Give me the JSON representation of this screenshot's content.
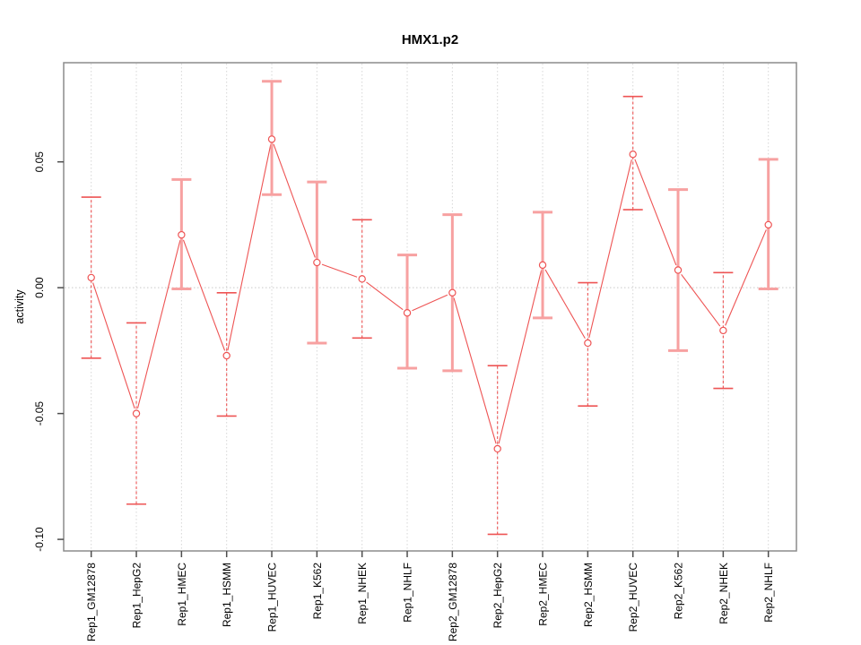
{
  "window": {
    "background": "#ffffff"
  },
  "chart_data": {
    "type": "line",
    "title": "HMX1.p2",
    "xlabel": "",
    "ylabel": "activity",
    "legend": "none",
    "grid": {
      "vertical_dotted_per_category": true,
      "horizontal_dotted_at_zero": true
    },
    "ylim": [
      -0.1046,
      0.0894
    ],
    "yticks": {
      "values": [
        0.05,
        0.0,
        -0.05,
        -0.1
      ],
      "labels": [
        "0.05",
        "0.00",
        "-0.05",
        "-0.10"
      ]
    },
    "categories": [
      "Rep1_GM12878",
      "Rep1_HepG2",
      "Rep1_HMEC",
      "Rep1_HSMM",
      "Rep1_HUVEC",
      "Rep1_K562",
      "Rep1_NHEK",
      "Rep1_NHLF",
      "Rep2_GM12878",
      "Rep2_HepG2",
      "Rep2_HMEC",
      "Rep2_HSMM",
      "Rep2_HUVEC",
      "Rep2_K562",
      "Rep2_NHEK",
      "Rep2_NHLF"
    ],
    "series": [
      {
        "name": "activity",
        "values": [
          0.004,
          -0.05,
          0.021,
          -0.027,
          0.059,
          0.01,
          0.0035,
          -0.01,
          -0.002,
          -0.064,
          0.009,
          -0.022,
          0.053,
          0.007,
          -0.017,
          0.025
        ],
        "error_low": [
          -0.028,
          -0.086,
          -0.0005,
          -0.051,
          0.037,
          -0.022,
          -0.02,
          -0.032,
          -0.033,
          -0.098,
          -0.012,
          -0.047,
          0.031,
          -0.025,
          -0.04,
          -0.0005
        ],
        "error_high": [
          0.036,
          -0.014,
          0.043,
          -0.002,
          0.082,
          0.042,
          0.027,
          0.013,
          0.029,
          -0.031,
          0.03,
          0.002,
          0.076,
          0.039,
          0.006,
          0.051
        ],
        "error_bar_styles": [
          "dashed",
          "dashed",
          "solid",
          "dashed",
          "solid",
          "solid",
          "dashed",
          "solid",
          "solid",
          "dashed",
          "solid",
          "dashed",
          "dashed",
          "solid",
          "dashed",
          "solid"
        ]
      }
    ],
    "marker": "open-circle",
    "colors": {
      "line": "#ee5454",
      "marker": "#ee5454",
      "error_bar_dashed": "#ee5454",
      "error_bar_solid": "#f7a1a1",
      "grid": "#d6d6d6",
      "zero_line": "#c9c9c9",
      "box": "#8c8c8c",
      "tick": "#4d4d4d",
      "text": "#000000"
    }
  }
}
